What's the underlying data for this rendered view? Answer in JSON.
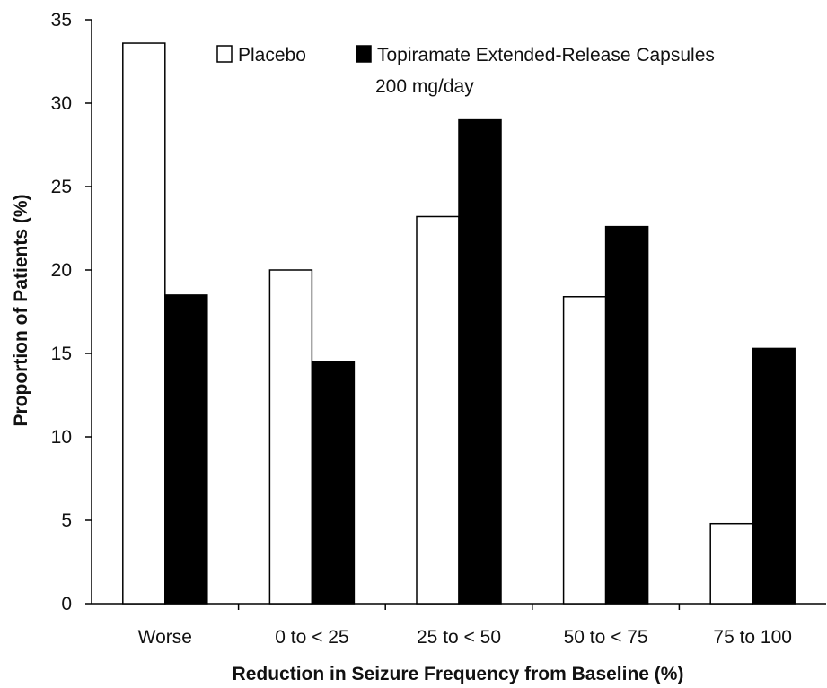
{
  "chart_data": {
    "type": "bar",
    "categories": [
      "Worse",
      "0 to < 25",
      "25 to < 50",
      "50 to < 75",
      "75 to 100"
    ],
    "series": [
      {
        "name": "Placebo",
        "values": [
          33.6,
          20.0,
          23.2,
          18.4,
          4.8
        ],
        "color": "#ffffff"
      },
      {
        "name": "Topiramate Extended-Release Capsules",
        "values": [
          18.5,
          14.5,
          29.0,
          22.6,
          15.3
        ],
        "color": "#000000"
      }
    ],
    "legend_extra_line": "200 mg/day",
    "xlabel": "Reduction in Seizure Frequency from Baseline (%)",
    "ylabel": "Proportion of Patients (%)",
    "ylim": [
      0,
      35
    ],
    "yticks": [
      0,
      5,
      10,
      15,
      20,
      25,
      30,
      35
    ],
    "grid": false,
    "legend_position": "top-center"
  }
}
